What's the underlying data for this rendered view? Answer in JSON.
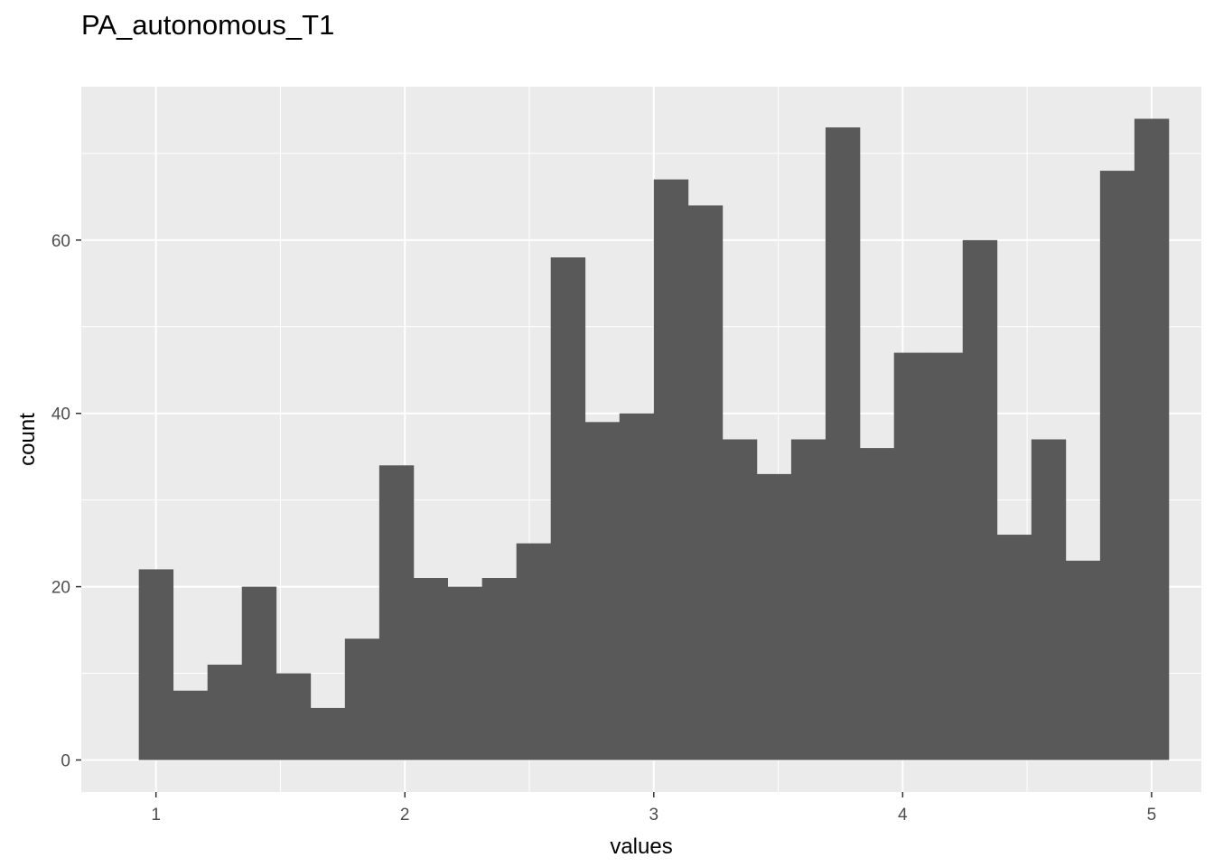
{
  "chart_data": {
    "type": "bar",
    "title": "PA_autonomous_T1",
    "xlabel": "values",
    "ylabel": "count",
    "xlim": [
      0.7,
      5.2
    ],
    "ylim": [
      -3.7,
      77.7
    ],
    "x_ticks": [
      1,
      2,
      3,
      4,
      5
    ],
    "y_ticks": [
      0,
      20,
      40,
      60
    ],
    "bin_width": 0.1379,
    "bins": [
      {
        "x": 1.0,
        "count": 22
      },
      {
        "x": 1.138,
        "count": 8
      },
      {
        "x": 1.276,
        "count": 11
      },
      {
        "x": 1.414,
        "count": 20
      },
      {
        "x": 1.552,
        "count": 10
      },
      {
        "x": 1.69,
        "count": 6
      },
      {
        "x": 1.828,
        "count": 14
      },
      {
        "x": 1.966,
        "count": 34
      },
      {
        "x": 2.103,
        "count": 21
      },
      {
        "x": 2.241,
        "count": 20
      },
      {
        "x": 2.379,
        "count": 21
      },
      {
        "x": 2.517,
        "count": 25
      },
      {
        "x": 2.655,
        "count": 58
      },
      {
        "x": 2.793,
        "count": 39
      },
      {
        "x": 2.931,
        "count": 40
      },
      {
        "x": 3.069,
        "count": 67
      },
      {
        "x": 3.207,
        "count": 64
      },
      {
        "x": 3.345,
        "count": 37
      },
      {
        "x": 3.483,
        "count": 33
      },
      {
        "x": 3.621,
        "count": 37
      },
      {
        "x": 3.759,
        "count": 73
      },
      {
        "x": 3.897,
        "count": 36
      },
      {
        "x": 4.034,
        "count": 47
      },
      {
        "x": 4.172,
        "count": 47
      },
      {
        "x": 4.31,
        "count": 60
      },
      {
        "x": 4.448,
        "count": 26
      },
      {
        "x": 4.586,
        "count": 37
      },
      {
        "x": 4.724,
        "count": 23
      },
      {
        "x": 4.862,
        "count": 68
      },
      {
        "x": 5.0,
        "count": 74
      }
    ],
    "colors": {
      "panel": "#ebebeb",
      "grid": "#ffffff",
      "bar": "#595959",
      "tick": "#4d4d4d",
      "tick_mark": "#333333"
    },
    "grid": true,
    "legend": "none"
  }
}
